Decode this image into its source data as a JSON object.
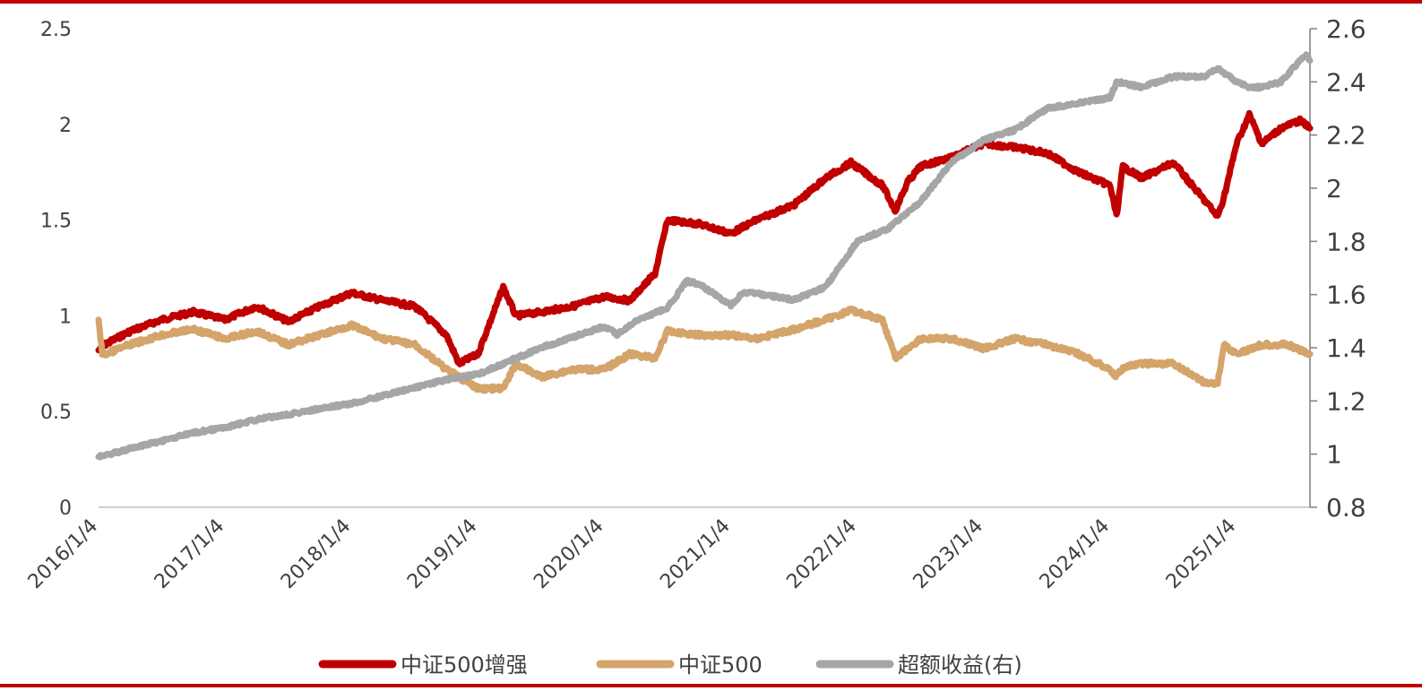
{
  "chart_data": {
    "type": "line",
    "title": "",
    "xlabel": "",
    "ylabel": "",
    "y2label": "",
    "x_ticks": [
      "2016/1/4",
      "2017/1/4",
      "2018/1/4",
      "2019/1/4",
      "2020/1/4",
      "2021/1/4",
      "2022/1/4",
      "2023/1/4",
      "2024/1/4",
      "2025/1/4"
    ],
    "x_range": [
      2016.0,
      2025.58
    ],
    "ylim_left": [
      0,
      2.5
    ],
    "yticks_left": [
      "0",
      "0.5",
      "1",
      "1.5",
      "2",
      "2.5"
    ],
    "ylim_right": [
      0.8,
      2.6
    ],
    "yticks_right": [
      "0.8",
      "1",
      "1.2",
      "1.4",
      "1.6",
      "1.8",
      "2",
      "2.2",
      "2.4",
      "2.6"
    ],
    "grid": false,
    "legend_position": "bottom",
    "series": [
      {
        "name": "中证500增强",
        "axis": "left",
        "color": "#c00000",
        "x": [
          2016.0,
          2016.05,
          2016.25,
          2016.5,
          2016.75,
          2017.0,
          2017.25,
          2017.5,
          2017.75,
          2018.0,
          2018.25,
          2018.5,
          2018.75,
          2018.85,
          2019.0,
          2019.2,
          2019.3,
          2019.5,
          2019.75,
          2020.0,
          2020.2,
          2020.4,
          2020.5,
          2020.75,
          2021.0,
          2021.2,
          2021.5,
          2021.75,
          2021.95,
          2022.2,
          2022.3,
          2022.4,
          2022.5,
          2022.75,
          2023.0,
          2023.25,
          2023.5,
          2023.75,
          2024.0,
          2024.05,
          2024.1,
          2024.25,
          2024.5,
          2024.75,
          2024.85,
          2024.9,
          2025.0,
          2025.1,
          2025.2,
          2025.35,
          2025.5,
          2025.58
        ],
        "values": [
          0.82,
          0.85,
          0.92,
          0.98,
          1.02,
          0.98,
          1.05,
          0.97,
          1.05,
          1.12,
          1.08,
          1.05,
          0.9,
          0.75,
          0.8,
          1.15,
          1.0,
          1.02,
          1.05,
          1.1,
          1.08,
          1.22,
          1.5,
          1.48,
          1.43,
          1.5,
          1.58,
          1.72,
          1.8,
          1.68,
          1.55,
          1.7,
          1.78,
          1.83,
          1.9,
          1.88,
          1.85,
          1.75,
          1.68,
          1.52,
          1.78,
          1.72,
          1.8,
          1.6,
          1.52,
          1.62,
          1.9,
          2.05,
          1.9,
          1.98,
          2.02,
          1.98
        ]
      },
      {
        "name": "中证500",
        "axis": "left",
        "color": "#d4a46a",
        "x": [
          2016.0,
          2016.03,
          2016.05,
          2016.25,
          2016.5,
          2016.75,
          2017.0,
          2017.25,
          2017.5,
          2017.75,
          2018.0,
          2018.25,
          2018.5,
          2018.75,
          2019.0,
          2019.2,
          2019.3,
          2019.5,
          2019.75,
          2020.0,
          2020.2,
          2020.4,
          2020.5,
          2020.75,
          2021.0,
          2021.2,
          2021.5,
          2021.75,
          2021.95,
          2022.2,
          2022.3,
          2022.5,
          2022.75,
          2023.0,
          2023.25,
          2023.5,
          2023.75,
          2024.0,
          2024.05,
          2024.1,
          2024.25,
          2024.5,
          2024.75,
          2024.85,
          2024.9,
          2025.0,
          2025.2,
          2025.4,
          2025.5,
          2025.58
        ],
        "values": [
          0.98,
          0.8,
          0.8,
          0.85,
          0.9,
          0.93,
          0.88,
          0.92,
          0.85,
          0.9,
          0.95,
          0.88,
          0.85,
          0.72,
          0.62,
          0.62,
          0.75,
          0.68,
          0.72,
          0.72,
          0.8,
          0.78,
          0.92,
          0.9,
          0.9,
          0.88,
          0.93,
          0.98,
          1.03,
          0.98,
          0.78,
          0.88,
          0.88,
          0.83,
          0.88,
          0.85,
          0.8,
          0.72,
          0.68,
          0.73,
          0.75,
          0.75,
          0.65,
          0.65,
          0.85,
          0.8,
          0.85,
          0.85,
          0.82,
          0.8
        ]
      },
      {
        "name": "超额收益(右)",
        "axis": "right",
        "color": "#a6a6a6",
        "x": [
          2016.0,
          2016.25,
          2016.5,
          2016.75,
          2017.0,
          2017.25,
          2017.5,
          2017.75,
          2018.0,
          2018.25,
          2018.5,
          2018.75,
          2019.0,
          2019.25,
          2019.5,
          2019.75,
          2020.0,
          2020.1,
          2020.25,
          2020.5,
          2020.65,
          2020.75,
          2021.0,
          2021.1,
          2021.25,
          2021.5,
          2021.75,
          2022.0,
          2022.25,
          2022.5,
          2022.75,
          2023.0,
          2023.25,
          2023.5,
          2023.75,
          2024.0,
          2024.05,
          2024.25,
          2024.5,
          2024.75,
          2024.85,
          2025.0,
          2025.1,
          2025.2,
          2025.35,
          2025.5,
          2025.55,
          2025.58
        ],
        "values": [
          0.99,
          1.02,
          1.05,
          1.08,
          1.1,
          1.13,
          1.15,
          1.17,
          1.19,
          1.22,
          1.25,
          1.28,
          1.3,
          1.35,
          1.4,
          1.44,
          1.48,
          1.45,
          1.5,
          1.55,
          1.65,
          1.64,
          1.56,
          1.61,
          1.6,
          1.58,
          1.63,
          1.8,
          1.85,
          1.95,
          2.1,
          2.18,
          2.22,
          2.3,
          2.32,
          2.34,
          2.4,
          2.38,
          2.42,
          2.42,
          2.45,
          2.4,
          2.38,
          2.38,
          2.4,
          2.48,
          2.5,
          2.48
        ]
      }
    ]
  }
}
